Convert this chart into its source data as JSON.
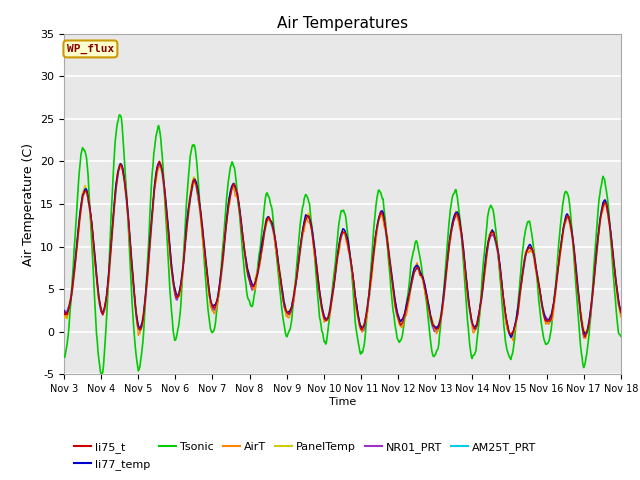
{
  "title": "Air Temperatures",
  "xlabel": "Time",
  "ylabel": "Air Temperature (C)",
  "ylim": [
    -5,
    35
  ],
  "background_color": "#e8e8e8",
  "grid_color": "white",
  "series": {
    "li75_t": {
      "color": "#cc0000",
      "lw": 1.0,
      "zorder": 5
    },
    "li77_temp": {
      "color": "#0000cc",
      "lw": 1.0,
      "zorder": 5
    },
    "Tsonic": {
      "color": "#00cc00",
      "lw": 1.2,
      "zorder": 4
    },
    "AirT": {
      "color": "#ff8800",
      "lw": 1.0,
      "zorder": 5
    },
    "PanelTemp": {
      "color": "#cccc00",
      "lw": 1.0,
      "zorder": 5
    },
    "NR01_PRT": {
      "color": "#9933cc",
      "lw": 1.0,
      "zorder": 5
    },
    "AM25T_PRT": {
      "color": "#00ccee",
      "lw": 1.6,
      "zorder": 3
    }
  },
  "legend_box_color": "#ffffcc",
  "legend_box_edge": "#cc9900",
  "legend_box_text": "WP_flux",
  "legend_box_text_color": "#880000",
  "xtick_labels": [
    "Nov 3",
    "Nov 4",
    "Nov 5",
    "Nov 6",
    "Nov 7",
    "Nov 8",
    "Nov 9",
    "Nov 10",
    "Nov 11",
    "Nov 12",
    "Nov 13",
    "Nov 14",
    "Nov 15",
    "Nov 16",
    "Nov 17",
    "Nov 18"
  ],
  "ytick_values": [
    -5,
    0,
    5,
    10,
    15,
    20,
    25,
    30,
    35
  ],
  "figsize": [
    6.4,
    4.8
  ],
  "dpi": 100
}
